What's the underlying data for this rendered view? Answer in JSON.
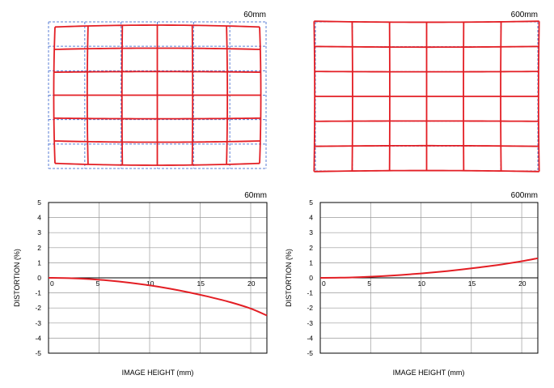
{
  "colors": {
    "distortion_curve": "#e31e24",
    "ideal_grid_dashed": "#5b7fd6",
    "plot_grid": "#9a9a9a",
    "axis": "#000000"
  },
  "chart_data": [
    {
      "type": "grid-distortion",
      "focal_label": "60mm",
      "rows": 6,
      "cols": 6,
      "distortion_type": "barrel"
    },
    {
      "type": "grid-distortion",
      "focal_label": "600mm",
      "rows": 6,
      "cols": 6,
      "distortion_type": "pincushion"
    },
    {
      "type": "line",
      "focal_label": "60mm",
      "xlabel": "IMAGE HEIGHT (mm)",
      "ylabel": "DISTORTION (%)",
      "xlim": [
        0,
        21.6
      ],
      "ylim": [
        -5,
        5
      ],
      "xticks": [
        0,
        5,
        10,
        15,
        20
      ],
      "yticks": [
        5,
        4,
        3,
        2,
        1,
        0,
        -1,
        -2,
        -3,
        -4,
        -5
      ],
      "grid": true,
      "series": [
        {
          "x": [
            0,
            2,
            4,
            6,
            8,
            10,
            12,
            14,
            16,
            18,
            20,
            21.6
          ],
          "y": [
            0,
            -0.02,
            -0.08,
            -0.18,
            -0.32,
            -0.5,
            -0.72,
            -0.98,
            -1.28,
            -1.62,
            -2.04,
            -2.5
          ]
        }
      ]
    },
    {
      "type": "line",
      "focal_label": "600mm",
      "xlabel": "IMAGE HEIGHT (mm)",
      "ylabel": "DISTORTION (%)",
      "xlim": [
        0,
        21.6
      ],
      "ylim": [
        -5,
        5
      ],
      "xticks": [
        0,
        5,
        10,
        15,
        20
      ],
      "yticks": [
        5,
        4,
        3,
        2,
        1,
        0,
        -1,
        -2,
        -3,
        -4,
        -5
      ],
      "grid": true,
      "series": [
        {
          "x": [
            0,
            2,
            4,
            6,
            8,
            10,
            12,
            14,
            16,
            18,
            20,
            21.6
          ],
          "y": [
            0,
            0.01,
            0.05,
            0.11,
            0.19,
            0.29,
            0.41,
            0.55,
            0.71,
            0.89,
            1.1,
            1.3
          ]
        }
      ]
    }
  ]
}
